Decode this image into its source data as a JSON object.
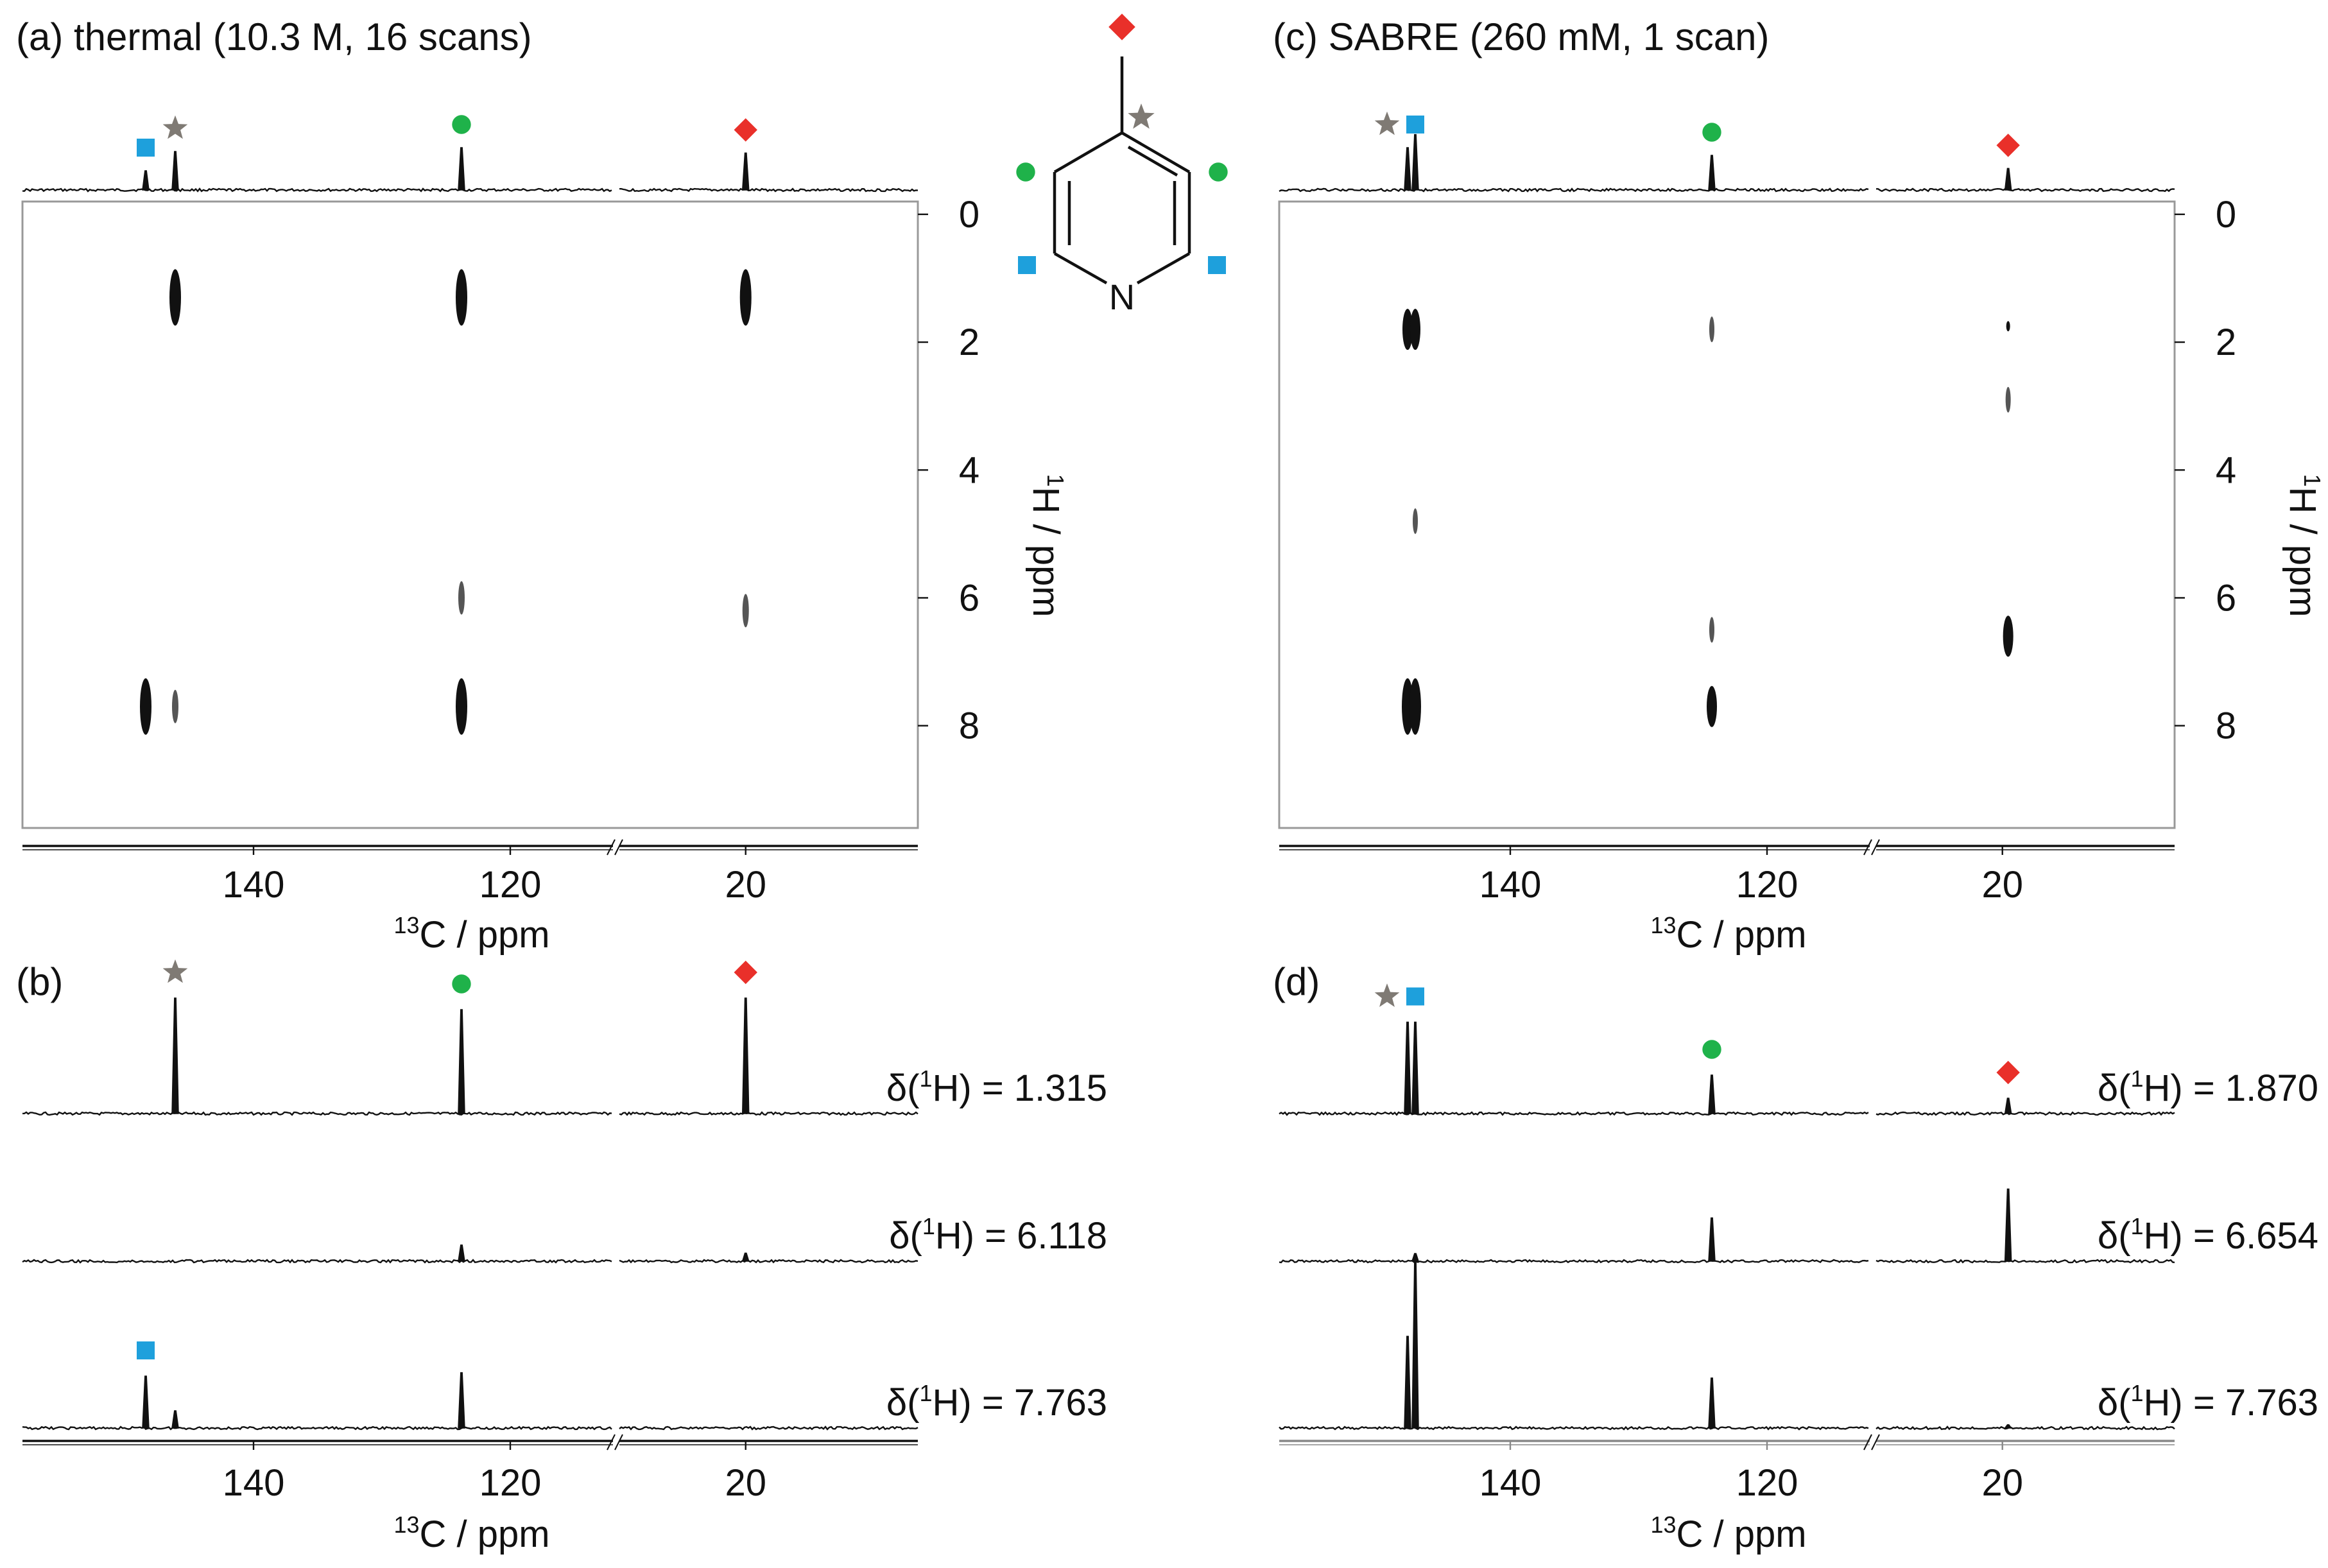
{
  "colors": {
    "line": "#111111",
    "frame": "#999999",
    "square": "#1ea0dc",
    "star": "#7f7a74",
    "circle": "#1fb24a",
    "diamond": "#e9302a"
  },
  "panels": {
    "a": {
      "title": "(a) thermal (10.3 M, 16 scans)",
      "label": "(a)"
    },
    "b": {
      "label": "(b)"
    },
    "c": {
      "title": "(c) SABRE (260 mM, 1 scan)",
      "label": "(c)"
    },
    "d": {
      "label": "(d)"
    }
  },
  "molecule": {
    "atom_label": "N",
    "name": "4-methylpyridine"
  },
  "chart_data": [
    {
      "panel": "a",
      "type": "heatmap",
      "title": "(a) thermal (10.3 M, 16 scans)",
      "xlabel": "13C / ppm",
      "xlabel_parts": {
        "sup": "13",
        "text": "C / ppm"
      },
      "ylabel": "1H / ppm",
      "ylabel_parts": {
        "sup": "1",
        "text": "H / ppm"
      },
      "x_segments": [
        [
          158,
          112
        ],
        [
          31,
          5
        ]
      ],
      "x_ticks": [
        140,
        120,
        20
      ],
      "ylim": [
        -0.2,
        9.6
      ],
      "y_ticks": [
        0,
        2,
        4,
        6,
        8
      ],
      "projection_peaks": [
        {
          "c": 148.4,
          "height": 0.25
        },
        {
          "c": 146.1,
          "height": 0.5
        },
        {
          "c": 123.8,
          "height": 0.55
        },
        {
          "c": 20.0,
          "height": 0.48
        }
      ],
      "projection_markers": [
        {
          "c": 148.4,
          "symbol": "square"
        },
        {
          "c": 146.1,
          "symbol": "star"
        },
        {
          "c": 123.8,
          "symbol": "circle"
        },
        {
          "c": 20.0,
          "symbol": "diamond"
        }
      ],
      "cross_peaks": [
        {
          "c": 146.1,
          "h": 1.3,
          "intensity": "strong"
        },
        {
          "c": 123.8,
          "h": 1.3,
          "intensity": "strong"
        },
        {
          "c": 20.0,
          "h": 1.3,
          "intensity": "strong"
        },
        {
          "c": 123.8,
          "h": 6.0,
          "intensity": "weak"
        },
        {
          "c": 20.0,
          "h": 6.2,
          "intensity": "weak"
        },
        {
          "c": 148.4,
          "h": 7.7,
          "intensity": "strong"
        },
        {
          "c": 146.1,
          "h": 7.7,
          "intensity": "weak"
        },
        {
          "c": 123.8,
          "h": 7.7,
          "intensity": "strong"
        }
      ]
    },
    {
      "panel": "b",
      "type": "line",
      "xlabel": "13C / ppm",
      "xlabel_parts": {
        "sup": "13",
        "text": "C / ppm"
      },
      "x_segments": [
        [
          158,
          112
        ],
        [
          31,
          5
        ]
      ],
      "x_ticks": [
        140,
        120,
        20
      ],
      "series": [
        {
          "name": "δ(1H) = 1.315",
          "delta_label": "δ(",
          "delta_sup": "1",
          "delta_value": "H) = 1.315",
          "peaks": [
            {
              "c": 146.1,
              "height": 1.0
            },
            {
              "c": 123.8,
              "height": 0.9
            },
            {
              "c": 20.0,
              "height": 1.0
            }
          ],
          "markers": [
            {
              "c": 146.1,
              "symbol": "star"
            },
            {
              "c": 123.8,
              "symbol": "circle"
            },
            {
              "c": 20.0,
              "symbol": "diamond"
            }
          ]
        },
        {
          "name": "δ(1H) = 6.118",
          "delta_label": "δ(",
          "delta_sup": "1",
          "delta_value": "H) = 6.118",
          "peaks": [
            {
              "c": 123.8,
              "height": 0.14
            },
            {
              "c": 20.0,
              "height": 0.07
            }
          ],
          "markers": []
        },
        {
          "name": "δ(1H) = 7.763",
          "delta_label": "δ(",
          "delta_sup": "1",
          "delta_value": "H) = 7.763",
          "peaks": [
            {
              "c": 148.4,
              "height": 0.45
            },
            {
              "c": 146.1,
              "height": 0.15
            },
            {
              "c": 123.8,
              "height": 0.48
            }
          ],
          "markers": [
            {
              "c": 148.4,
              "symbol": "square"
            }
          ]
        }
      ]
    },
    {
      "panel": "c",
      "type": "heatmap",
      "title": "(c) SABRE (260 mM, 1 scan)",
      "xlabel": "13C / ppm",
      "xlabel_parts": {
        "sup": "13",
        "text": "C / ppm"
      },
      "ylabel": "1H / ppm",
      "ylabel_parts": {
        "sup": "1",
        "text": "H / ppm"
      },
      "x_segments": [
        [
          158,
          112
        ],
        [
          31,
          5
        ]
      ],
      "x_ticks": [
        140,
        120,
        20
      ],
      "ylim": [
        -0.2,
        9.6
      ],
      "y_ticks": [
        0,
        2,
        4,
        6,
        8
      ],
      "projection_peaks": [
        {
          "c": 148.0,
          "height": 0.55
        },
        {
          "c": 147.4,
          "height": 0.72
        },
        {
          "c": 124.3,
          "height": 0.45
        },
        {
          "c": 19.5,
          "height": 0.28
        }
      ],
      "projection_markers": [
        {
          "c": 149.6,
          "symbol": "star"
        },
        {
          "c": 147.4,
          "symbol": "square"
        },
        {
          "c": 124.3,
          "symbol": "circle"
        },
        {
          "c": 19.5,
          "symbol": "diamond"
        }
      ],
      "cross_peaks": [
        {
          "c": 148.0,
          "h": 1.8,
          "intensity": "medium"
        },
        {
          "c": 147.4,
          "h": 1.8,
          "intensity": "medium"
        },
        {
          "c": 124.3,
          "h": 1.8,
          "intensity": "faint"
        },
        {
          "c": 19.5,
          "h": 1.75,
          "intensity": "trace"
        },
        {
          "c": 19.5,
          "h": 2.9,
          "intensity": "faint"
        },
        {
          "c": 147.4,
          "h": 4.8,
          "intensity": "faint"
        },
        {
          "c": 124.3,
          "h": 6.5,
          "intensity": "faint"
        },
        {
          "c": 19.5,
          "h": 6.6,
          "intensity": "medium"
        },
        {
          "c": 148.0,
          "h": 7.7,
          "intensity": "strong"
        },
        {
          "c": 147.4,
          "h": 7.7,
          "intensity": "strong"
        },
        {
          "c": 124.3,
          "h": 7.7,
          "intensity": "medium"
        }
      ]
    },
    {
      "panel": "d",
      "type": "line",
      "xlabel": "13C / ppm",
      "xlabel_parts": {
        "sup": "13",
        "text": "C / ppm"
      },
      "x_segments": [
        [
          158,
          112
        ],
        [
          31,
          5
        ]
      ],
      "x_ticks": [
        140,
        120,
        20
      ],
      "series": [
        {
          "name": "δ(1H) = 1.870",
          "delta_label": "δ(",
          "delta_sup": "1",
          "delta_value": "H) = 1.870",
          "peaks": [
            {
              "c": 148.0,
              "height": 0.95
            },
            {
              "c": 147.4,
              "height": 0.95
            },
            {
              "c": 124.3,
              "height": 0.4
            },
            {
              "c": 19.5,
              "height": 0.16
            }
          ],
          "markers": [
            {
              "c": 149.6,
              "symbol": "star"
            },
            {
              "c": 147.4,
              "symbol": "square"
            },
            {
              "c": 124.3,
              "symbol": "circle"
            },
            {
              "c": 19.5,
              "symbol": "diamond"
            }
          ]
        },
        {
          "name": "δ(1H) = 6.654",
          "delta_label": "δ(",
          "delta_sup": "1",
          "delta_value": "H) = 6.654",
          "peaks": [
            {
              "c": 147.4,
              "height": 0.08
            },
            {
              "c": 124.3,
              "height": 0.45
            },
            {
              "c": 19.5,
              "height": 0.75
            }
          ],
          "markers": []
        },
        {
          "name": "δ(1H) = 7.763",
          "delta_label": "δ(",
          "delta_sup": "1",
          "delta_value": "H) = 7.763",
          "peaks": [
            {
              "c": 148.0,
              "height": 1.1
            },
            {
              "c": 147.4,
              "height": 2.0
            },
            {
              "c": 124.3,
              "height": 0.6
            },
            {
              "c": 19.5,
              "height": 0.04
            }
          ],
          "markers": []
        }
      ]
    }
  ]
}
